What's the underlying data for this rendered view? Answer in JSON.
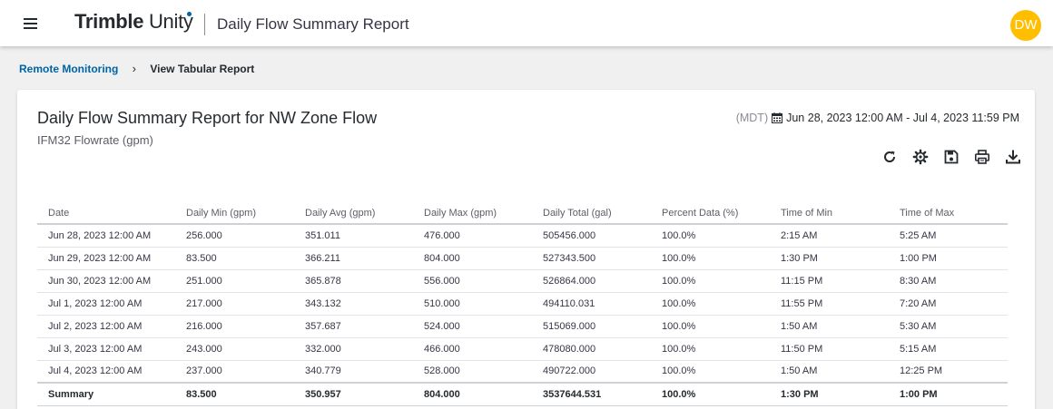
{
  "header": {
    "brand_name": "Trimble",
    "brand_product": "Unity",
    "app_title": "Daily Flow Summary Report",
    "avatar_initials": "DW",
    "avatar_color": "#ffbe00"
  },
  "breadcrumb": {
    "parent": "Remote Monitoring",
    "separator": "›",
    "current": "View Tabular Report"
  },
  "report": {
    "title": "Daily Flow Summary Report for NW Zone Flow",
    "subtitle": "IFM32 Flowrate (gpm)",
    "timezone": "(MDT)",
    "date_range": "Jun 28, 2023 12:00 AM - Jul 4, 2023 11:59 PM"
  },
  "toolbar": {
    "icons": [
      "refresh-icon",
      "settings-icon",
      "save-icon",
      "print-icon",
      "download-icon"
    ]
  },
  "table": {
    "columns": [
      "Date",
      "Daily Min (gpm)",
      "Daily Avg (gpm)",
      "Daily Max (gpm)",
      "Daily Total (gal)",
      "Percent Data (%)",
      "Time of Min",
      "Time of Max"
    ],
    "rows": [
      [
        "Jun 28, 2023 12:00 AM",
        "256.000",
        "351.011",
        "476.000",
        "505456.000",
        "100.0%",
        "2:15 AM",
        "5:25 AM"
      ],
      [
        "Jun 29, 2023 12:00 AM",
        "83.500",
        "366.211",
        "804.000",
        "527343.500",
        "100.0%",
        "1:30 PM",
        "1:00 PM"
      ],
      [
        "Jun 30, 2023 12:00 AM",
        "251.000",
        "365.878",
        "556.000",
        "526864.000",
        "100.0%",
        "11:15 PM",
        "8:30 AM"
      ],
      [
        "Jul 1, 2023 12:00 AM",
        "217.000",
        "343.132",
        "510.000",
        "494110.031",
        "100.0%",
        "11:55 PM",
        "7:20 AM"
      ],
      [
        "Jul 2, 2023 12:00 AM",
        "216.000",
        "357.687",
        "524.000",
        "515069.000",
        "100.0%",
        "1:50 AM",
        "5:30 AM"
      ],
      [
        "Jul 3, 2023 12:00 AM",
        "243.000",
        "332.000",
        "466.000",
        "478080.000",
        "100.0%",
        "11:50 PM",
        "5:15 AM"
      ],
      [
        "Jul 4, 2023 12:00 AM",
        "237.000",
        "340.779",
        "528.000",
        "490722.000",
        "100.0%",
        "1:50 AM",
        "12:25 PM"
      ]
    ],
    "summary": [
      "Summary",
      "83.500",
      "350.957",
      "804.000",
      "3537644.531",
      "100.0%",
      "1:30 PM",
      "1:00 PM"
    ]
  }
}
